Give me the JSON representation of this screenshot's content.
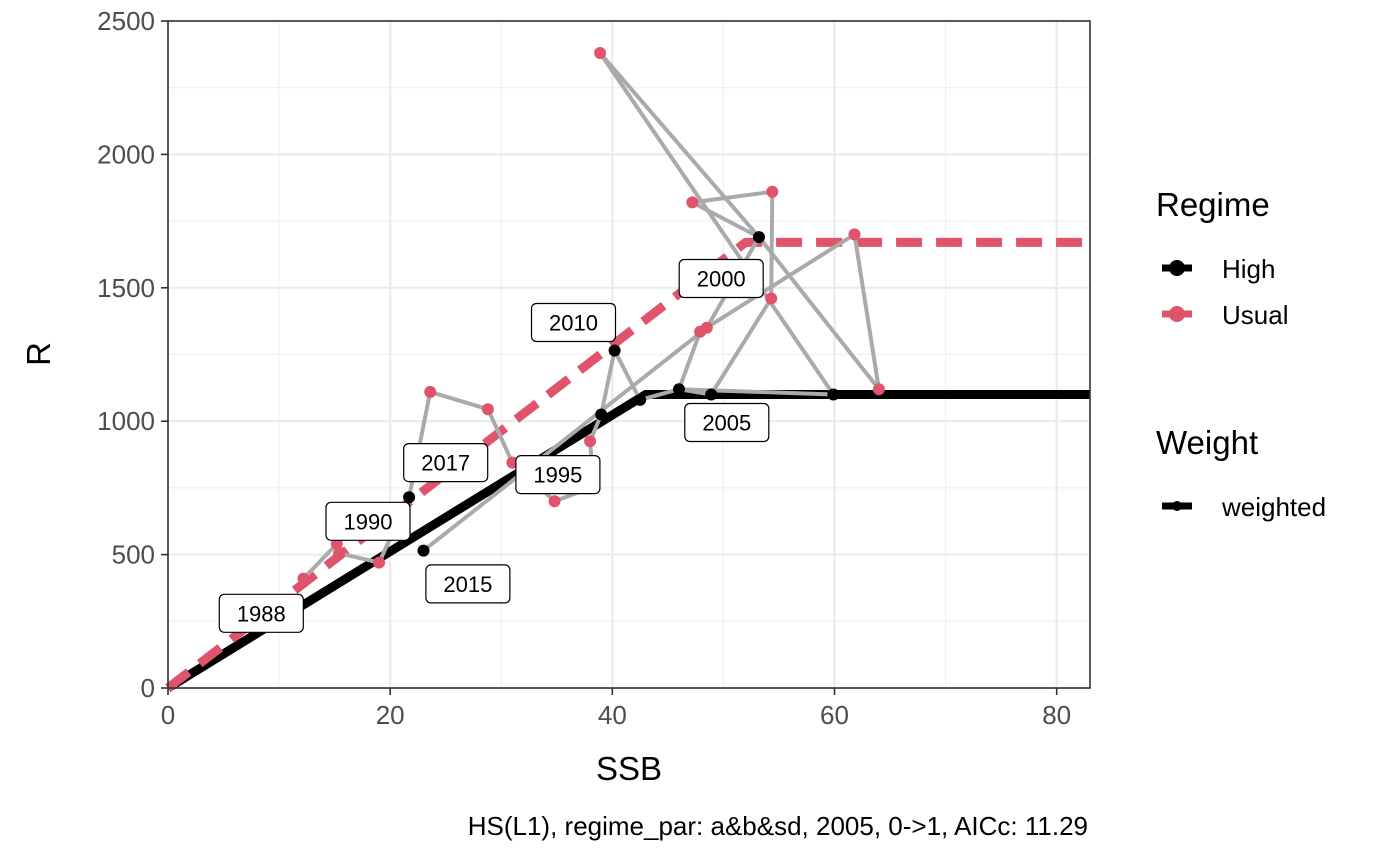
{
  "chart_data": {
    "type": "scatter",
    "xlabel": "SSB",
    "ylabel": "R",
    "xlim": [
      0,
      83
    ],
    "ylim": [
      0,
      2500
    ],
    "x_ticks": [
      0,
      20,
      40,
      60,
      80
    ],
    "y_ticks": [
      0,
      500,
      1000,
      1500,
      2000,
      2500
    ],
    "grid": true,
    "legend_position": "right",
    "caption": "HS(L1), regime_par: a&b&sd, 2005, 0->1, AIC​c: 11.29",
    "colors": {
      "High": "#000000",
      "Usual": "#df536b",
      "trajectory": "#aaaaaa"
    },
    "fits": [
      {
        "regime": "High",
        "points": [
          [
            0,
            0
          ],
          [
            43,
            1100
          ],
          [
            83,
            1100
          ]
        ]
      },
      {
        "regime": "Usual",
        "points": [
          [
            0,
            0
          ],
          [
            52,
            1670
          ],
          [
            83,
            1670
          ]
        ]
      }
    ],
    "points": [
      {
        "x": 12.2,
        "y": 410,
        "regime": "Usual"
      },
      {
        "x": 15.2,
        "y": 540,
        "regime": "Usual"
      },
      {
        "x": 15.4,
        "y": 505,
        "regime": "Usual"
      },
      {
        "x": 19.0,
        "y": 470,
        "regime": "Usual"
      },
      {
        "x": 21.7,
        "y": 715,
        "regime": "High"
      },
      {
        "x": 23.6,
        "y": 1110,
        "regime": "Usual"
      },
      {
        "x": 28.8,
        "y": 1045,
        "regime": "Usual"
      },
      {
        "x": 31.0,
        "y": 845,
        "regime": "Usual"
      },
      {
        "x": 34.8,
        "y": 700,
        "regime": "Usual"
      },
      {
        "x": 38.3,
        "y": 755,
        "regime": "High"
      },
      {
        "x": 38.9,
        "y": 2380,
        "regime": "Usual"
      },
      {
        "x": 38.0,
        "y": 925,
        "regime": "Usual"
      },
      {
        "x": 39.0,
        "y": 1025,
        "regime": "High"
      },
      {
        "x": 40.2,
        "y": 1265,
        "regime": "High"
      },
      {
        "x": 42.5,
        "y": 1080,
        "regime": "High"
      },
      {
        "x": 46.0,
        "y": 1120,
        "regime": "High"
      },
      {
        "x": 47.2,
        "y": 1820,
        "regime": "Usual"
      },
      {
        "x": 47.9,
        "y": 1335,
        "regime": "Usual"
      },
      {
        "x": 48.5,
        "y": 1350,
        "regime": "Usual"
      },
      {
        "x": 48.9,
        "y": 1100,
        "regime": "High"
      },
      {
        "x": 53.2,
        "y": 1690,
        "regime": "High"
      },
      {
        "x": 54.3,
        "y": 1460,
        "regime": "Usual"
      },
      {
        "x": 54.4,
        "y": 1860,
        "regime": "Usual"
      },
      {
        "x": 59.9,
        "y": 1100,
        "regime": "High"
      },
      {
        "x": 61.8,
        "y": 1700,
        "regime": "Usual"
      },
      {
        "x": 64.0,
        "y": 1120,
        "regime": "Usual"
      },
      {
        "x": 23.0,
        "y": 515,
        "regime": "High"
      }
    ],
    "trajectory": [
      [
        12.2,
        410
      ],
      [
        15.2,
        540
      ],
      [
        15.4,
        505
      ],
      [
        19.0,
        470
      ],
      [
        21.7,
        715
      ],
      [
        23.6,
        1110
      ],
      [
        28.8,
        1045
      ],
      [
        31.0,
        845
      ],
      [
        34.8,
        700
      ],
      [
        38.3,
        755
      ],
      [
        38.0,
        925
      ],
      [
        39.0,
        1025
      ],
      [
        40.2,
        1265
      ],
      [
        42.5,
        1080
      ],
      [
        46.0,
        1120
      ],
      [
        48.9,
        1100
      ],
      [
        54.3,
        1460
      ],
      [
        54.4,
        1860
      ],
      [
        47.2,
        1820
      ],
      [
        53.2,
        1690
      ],
      [
        38.9,
        2380
      ],
      [
        59.9,
        1100
      ],
      [
        46.0,
        1120
      ],
      [
        47.9,
        1335
      ],
      [
        61.8,
        1700
      ],
      [
        64.0,
        1120
      ],
      [
        53.2,
        1690
      ],
      [
        48.5,
        1350
      ],
      [
        23.0,
        515
      ]
    ],
    "annotations": [
      {
        "text": "1988",
        "x": 8.4,
        "y": 280
      },
      {
        "text": "1990",
        "x": 18.0,
        "y": 625
      },
      {
        "text": "1995",
        "x": 35.1,
        "y": 800
      },
      {
        "text": "2000",
        "x": 49.8,
        "y": 1535
      },
      {
        "text": "2005",
        "x": 50.3,
        "y": 995
      },
      {
        "text": "2010",
        "x": 36.5,
        "y": 1370
      },
      {
        "text": "2015",
        "x": 27.0,
        "y": 390
      },
      {
        "text": "2017",
        "x": 25.0,
        "y": 845
      }
    ],
    "legend": {
      "regime_title": "Regime",
      "regime_items": [
        {
          "label": "High",
          "color": "#000000"
        },
        {
          "label": "Usual",
          "color": "#df536b"
        }
      ],
      "weight_title": "Weight",
      "weight_items": [
        {
          "label": "weighted"
        }
      ]
    }
  }
}
